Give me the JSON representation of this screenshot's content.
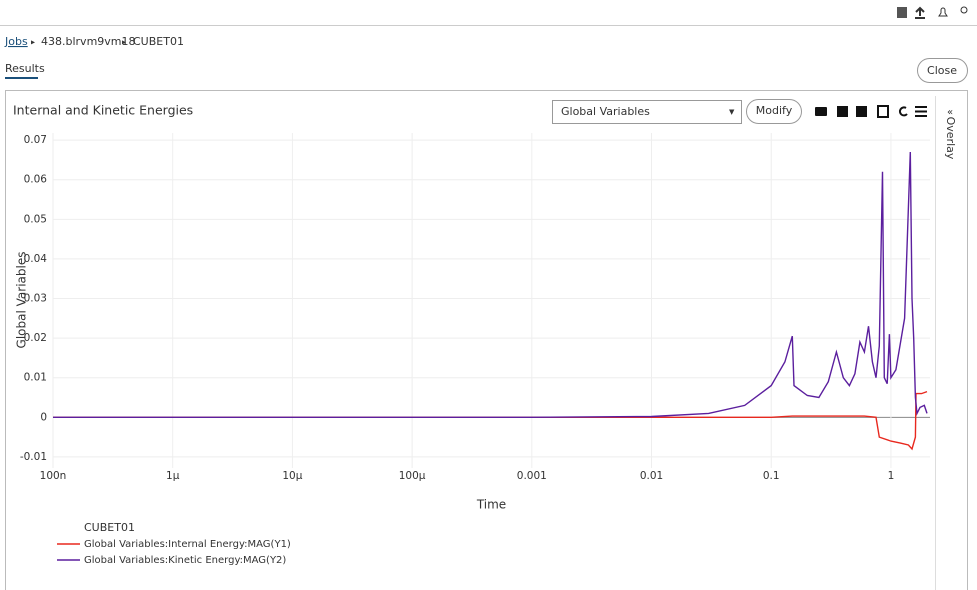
{
  "breadcrumb": {
    "root": "Jobs",
    "items": [
      "438.blrvm9vm18",
      "CUBET01"
    ]
  },
  "tabs": [
    "Results"
  ],
  "buttons": {
    "close": "Close",
    "modify": "Modify"
  },
  "dropdown": "Global Variables",
  "side_panel": "Overlay",
  "chart_data": {
    "type": "line",
    "title": "Internal and Kinetic Energies",
    "xlabel": "Time",
    "ylabel": "Global Variables",
    "legend_title": "CUBET01",
    "xscale": "log",
    "grid": true,
    "xlim": [
      1e-07,
      2.12
    ],
    "xticks": [
      {
        "value": 1e-07,
        "label": "100n"
      },
      {
        "value": 1e-06,
        "label": "1μ"
      },
      {
        "value": 1e-05,
        "label": "10μ"
      },
      {
        "value": 0.0001,
        "label": "100μ"
      },
      0.001,
      0.01,
      0.1,
      1
    ],
    "ylim": [
      -0.0128,
      0.0718
    ],
    "yticks": [
      -0.01,
      0,
      0.01,
      0.02,
      0.03,
      0.04,
      0.05,
      0.06,
      0.07
    ],
    "series": [
      {
        "name": "Global Variables:Internal Energy:MAG(Y1)",
        "color": "#e8281e",
        "x": [
          1e-07,
          0.1,
          0.15,
          0.6,
          0.75,
          0.8,
          1.0,
          1.2,
          1.4,
          1.5,
          1.6,
          1.62,
          1.8,
          2.0
        ],
        "values": [
          0,
          0,
          0.0003,
          0.0003,
          0,
          -0.005,
          -0.006,
          -0.0065,
          -0.007,
          -0.008,
          -0.005,
          0.006,
          0.006,
          0.0065
        ]
      },
      {
        "name": "Global Variables:Kinetic Energy:MAG(Y2)",
        "color": "#5b1f9e",
        "x": [
          1e-07,
          0.001,
          0.01,
          0.03,
          0.06,
          0.1,
          0.13,
          0.15,
          0.155,
          0.2,
          0.25,
          0.3,
          0.35,
          0.4,
          0.45,
          0.5,
          0.55,
          0.6,
          0.65,
          0.7,
          0.75,
          0.8,
          0.85,
          0.88,
          0.93,
          0.97,
          1.0,
          1.1,
          1.3,
          1.45,
          1.5,
          1.55,
          1.6,
          1.65,
          1.75,
          1.9,
          2.0
        ],
        "values": [
          0,
          0,
          0.0002,
          0.001,
          0.003,
          0.008,
          0.014,
          0.0205,
          0.008,
          0.0055,
          0.005,
          0.009,
          0.0165,
          0.01,
          0.008,
          0.011,
          0.019,
          0.0165,
          0.023,
          0.014,
          0.01,
          0.018,
          0.062,
          0.01,
          0.0085,
          0.021,
          0.01,
          0.012,
          0.025,
          0.067,
          0.03,
          0.02,
          0.005,
          0.001,
          0.0025,
          0.003,
          0.001
        ]
      }
    ]
  }
}
